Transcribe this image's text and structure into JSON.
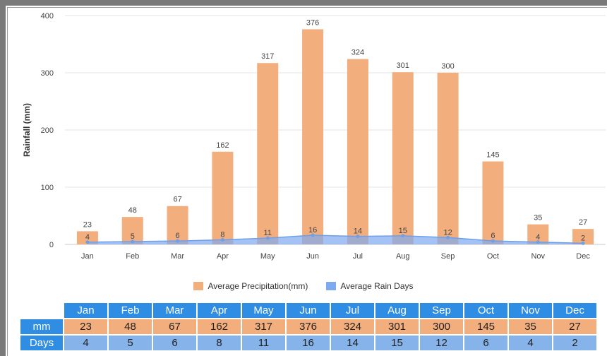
{
  "chart_data": {
    "type": "bar",
    "categories": [
      "Jan",
      "Feb",
      "Mar",
      "Apr",
      "May",
      "Jun",
      "Jul",
      "Aug",
      "Sep",
      "Oct",
      "Nov",
      "Dec"
    ],
    "ylabel": "Rainfall (mm)",
    "ylim": [
      0,
      400
    ],
    "yticks": [
      "0",
      "100",
      "200",
      "300",
      "400"
    ],
    "grid": true,
    "legend_position": "bottom",
    "series": [
      {
        "name": "Average Precipitation(mm)",
        "type": "bar",
        "color": "#f3ae7d",
        "values": [
          23,
          48,
          67,
          162,
          317,
          376,
          324,
          301,
          300,
          145,
          35,
          27
        ]
      },
      {
        "name": "Average Rain Days",
        "type": "area",
        "color": "#7eaaf0",
        "values": [
          4,
          5,
          6,
          8,
          11,
          16,
          14,
          15,
          12,
          6,
          4,
          2
        ]
      }
    ]
  },
  "table": {
    "months": [
      "Jan",
      "Feb",
      "Mar",
      "Apr",
      "May",
      "Jun",
      "Jul",
      "Aug",
      "Sep",
      "Oct",
      "Nov",
      "Dec"
    ],
    "rows": [
      {
        "label": "mm",
        "values": [
          "23",
          "48",
          "67",
          "162",
          "317",
          "376",
          "324",
          "301",
          "300",
          "145",
          "35",
          "27"
        ]
      },
      {
        "label": "Days",
        "values": [
          "4",
          "5",
          "6",
          "8",
          "11",
          "16",
          "14",
          "15",
          "12",
          "6",
          "4",
          "2"
        ]
      }
    ]
  }
}
